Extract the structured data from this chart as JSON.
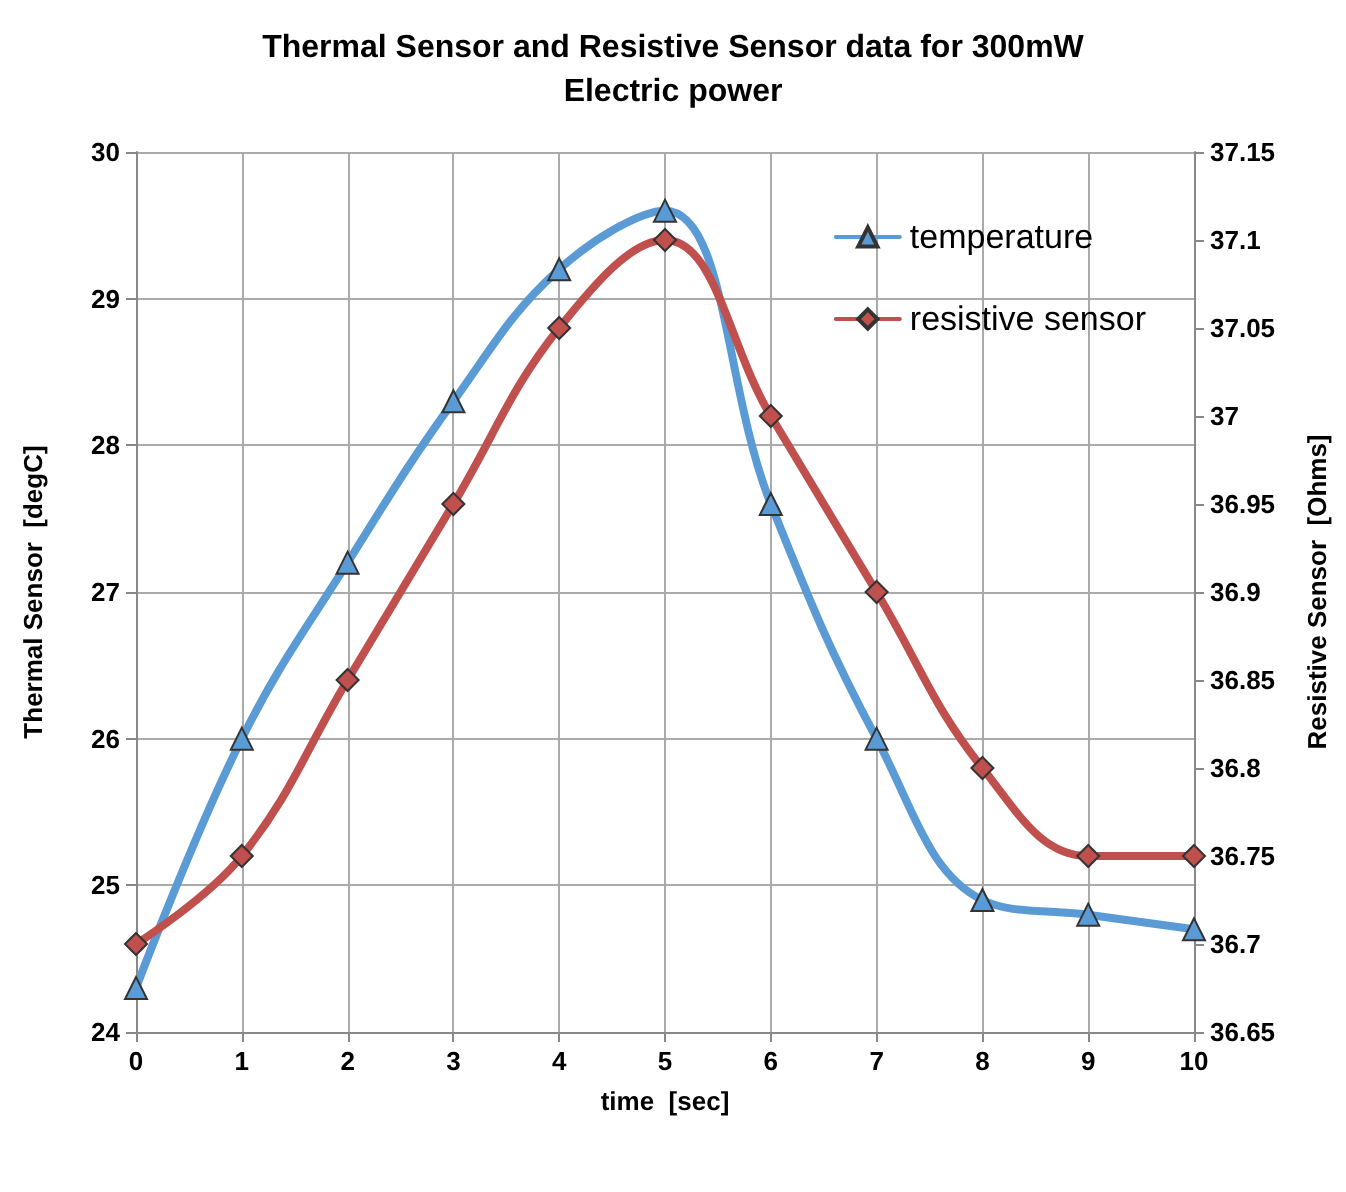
{
  "chart_data": {
    "type": "line",
    "title": "Thermal Sensor and Resistive Sensor data for 300mW\nElectric power",
    "xlabel": "time  [sec]",
    "ylabel": "Thermal Sensor  [degC]",
    "y2label": "Resistive Sensor  [Ohms]",
    "x": [
      0,
      1,
      2,
      3,
      4,
      5,
      6,
      7,
      8,
      9,
      10
    ],
    "xlim": [
      0,
      10
    ],
    "xticks": [
      0,
      1,
      2,
      3,
      4,
      5,
      6,
      7,
      8,
      9,
      10
    ],
    "ylim": [
      24,
      30
    ],
    "yticks": [
      24,
      25,
      26,
      27,
      28,
      29,
      30
    ],
    "y2lim": [
      36.65,
      37.15
    ],
    "y2ticks": [
      36.65,
      36.7,
      36.75,
      36.8,
      36.85,
      36.9,
      36.95,
      37,
      37.05,
      37.1,
      37.15
    ],
    "series": [
      {
        "name": "temperature",
        "color": "#5b9bd5",
        "marker": "triangle",
        "values": [
          24.3,
          26.0,
          27.2,
          28.3,
          29.2,
          29.6,
          27.6,
          26.0,
          24.9,
          24.8,
          24.7
        ]
      },
      {
        "name": "resistive sensor",
        "color": "#c0504d",
        "marker": "diamond",
        "axis": "y2",
        "values": [
          36.7,
          36.75,
          36.85,
          36.95,
          37.05,
          37.1,
          37.0,
          36.9,
          36.8,
          36.75,
          36.75
        ]
      }
    ],
    "grid": true,
    "legend": "top right",
    "line_style": "solid"
  }
}
